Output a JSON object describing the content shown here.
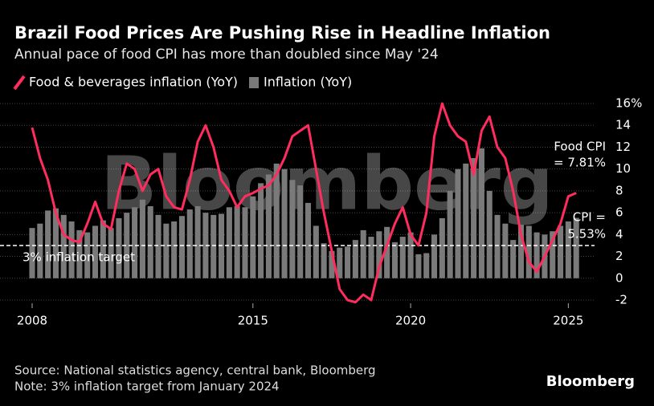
{
  "chart_data": {
    "type": "bar-line",
    "title": "Brazil Food Prices Are Pushing Rise in Headline Inflation",
    "subtitle": "Annual pace of food CPI has more than doubled since May '24",
    "x": [
      2008,
      2008.25,
      2008.5,
      2008.75,
      2009,
      2009.25,
      2009.5,
      2009.75,
      2010,
      2010.25,
      2010.5,
      2010.75,
      2011,
      2011.25,
      2011.5,
      2011.75,
      2012,
      2012.25,
      2012.5,
      2012.75,
      2013,
      2013.25,
      2013.5,
      2013.75,
      2014,
      2014.25,
      2014.5,
      2014.75,
      2015,
      2015.25,
      2015.5,
      2015.75,
      2016,
      2016.25,
      2016.5,
      2016.75,
      2017,
      2017.25,
      2017.5,
      2017.75,
      2018,
      2018.25,
      2018.5,
      2018.75,
      2019,
      2019.25,
      2019.5,
      2019.75,
      2020,
      2020.25,
      2020.5,
      2020.75,
      2021,
      2021.25,
      2021.5,
      2021.75,
      2022,
      2022.25,
      2022.5,
      2022.75,
      2023,
      2023.25,
      2023.5,
      2023.75,
      2024,
      2024.25,
      2024.5,
      2024.75,
      2025,
      2025.25
    ],
    "series": [
      {
        "name": "Food & beverages inflation (YoY)",
        "kind": "line",
        "color": "#ff2d5e",
        "values": [
          13.8,
          11,
          9,
          6,
          4,
          3.5,
          3.3,
          5,
          7,
          5,
          4.5,
          8,
          10.5,
          10,
          8,
          9.5,
          10,
          7.5,
          6.5,
          6.3,
          9,
          12.5,
          14,
          12,
          9,
          8,
          6.5,
          7.5,
          7.8,
          8.2,
          8.5,
          9.5,
          11,
          13,
          13.5,
          14,
          10,
          6,
          2.5,
          -1,
          -2,
          -2.2,
          -1.5,
          -2,
          1,
          3,
          5,
          6.5,
          4,
          3,
          6,
          13,
          16,
          14,
          13,
          12.5,
          9.5,
          13.5,
          14.8,
          12,
          11,
          8,
          4,
          1.5,
          0.6,
          2,
          3.5,
          5,
          7.5,
          7.81
        ]
      },
      {
        "name": "Inflation (YoY)",
        "kind": "bar",
        "color": "#7a7a7a",
        "values": [
          4.6,
          5,
          6.2,
          6.4,
          5.8,
          5.2,
          4.4,
          4.2,
          4.8,
          5.3,
          4.6,
          5.5,
          6,
          6.5,
          7.2,
          6.6,
          5.8,
          5,
          5.2,
          5.7,
          6.3,
          6.6,
          6,
          5.8,
          5.9,
          6.5,
          6.6,
          6.5,
          7.5,
          8.7,
          9.5,
          10.5,
          10,
          9,
          8.5,
          6.9,
          4.8,
          3.2,
          2.5,
          2.8,
          2.9,
          3.5,
          4.4,
          3.8,
          4.3,
          4.7,
          3.3,
          3.8,
          4.2,
          2.2,
          2.3,
          4,
          5.5,
          8,
          10,
          10.5,
          11,
          11.9,
          8,
          5.8,
          5,
          3.5,
          4.9,
          4.8,
          4.2,
          4,
          4.3,
          4.8,
          5.2,
          5.53
        ]
      }
    ],
    "xlim": [
      2008,
      2025.5
    ],
    "xticks": [
      2008,
      2015,
      2020,
      2025
    ],
    "ylim": [
      -2,
      16
    ],
    "yticks": [
      -2,
      0,
      2,
      4,
      6,
      8,
      10,
      12,
      14,
      {
        "value": 16,
        "label": "16%"
      }
    ],
    "grid": true,
    "target": {
      "value": 3,
      "label": "3% inflation target"
    },
    "annotations": [
      "Food CPI",
      "= 7.81%",
      "CPI =",
      "5.53%"
    ],
    "watermark": "Bloomberg",
    "source": "Source: National statistics agency, central bank, Bloomberg",
    "note": "Note: 3% inflation target from January 2024",
    "logo": "Bloomberg"
  }
}
